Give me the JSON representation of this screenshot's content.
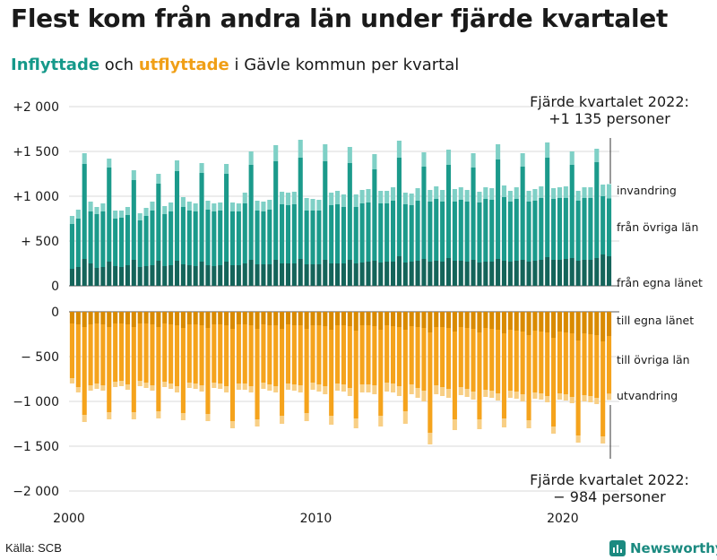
{
  "header": {
    "title": "Flest kom från andra län under fjärde kvartalet",
    "subtitle_in": "Inflyttade",
    "subtitle_mid": " och ",
    "subtitle_out": "utflyttade",
    "subtitle_end": " i Gävle kommun per kvartal"
  },
  "footer": {
    "source": "Källa: SCB",
    "brand": "Newsworthy"
  },
  "colors": {
    "in_own_county": "#14645a",
    "in_other_counties": "#1b9a8b",
    "in_immigration": "#7fd0c6",
    "out_own_county": "#d98a00",
    "out_other_counties": "#f5a31c",
    "out_emigration": "#f8cf85"
  },
  "chart_data": {
    "type": "bar",
    "stacked": true,
    "title": "Inflyttade och utflyttade i Gävle kommun per kvartal",
    "x_start": "2000 Q1",
    "x_end": "2022 Q4",
    "x_tick_labels": [
      "2000",
      "2010",
      "2020"
    ],
    "y_tick_labels": [
      "+2 000",
      "+1 500",
      "+1 000",
      "+ 500",
      "0",
      "0",
      "− 500",
      "−1 000",
      "−1 500",
      "−2 000"
    ],
    "ylim_in": [
      0,
      2000
    ],
    "ylim_out": [
      -2000,
      0
    ],
    "series_labels": {
      "in_own_county": "från egna länet",
      "in_other_counties": "från övriga län",
      "in_immigration": "invandring",
      "out_own_county": "till egna länet",
      "out_other_counties": "till övriga län",
      "out_emigration": "utvandring"
    },
    "annotation_in_line1": "Fjärde kvartalet 2022:",
    "annotation_in_line2": "+1 135 personer",
    "annotation_out_line1": "Fjärde kvartalet 2022:",
    "annotation_out_line2": "−  984 personer",
    "in_totals": [
      780,
      850,
      1480,
      940,
      880,
      920,
      1420,
      840,
      840,
      880,
      1290,
      810,
      870,
      940,
      1250,
      890,
      930,
      1400,
      990,
      940,
      920,
      1370,
      950,
      920,
      930,
      1360,
      930,
      920,
      1040,
      1500,
      950,
      940,
      960,
      1570,
      1050,
      1040,
      1050,
      1630,
      980,
      970,
      960,
      1580,
      1040,
      1060,
      1020,
      1550,
      1020,
      1070,
      1080,
      1470,
      1060,
      1060,
      1100,
      1620,
      1040,
      1030,
      1090,
      1490,
      1070,
      1110,
      1070,
      1520,
      1080,
      1100,
      1070,
      1480,
      1050,
      1100,
      1090,
      1580,
      1120,
      1060,
      1100,
      1480,
      1060,
      1080,
      1110,
      1600,
      1090,
      1100,
      1110,
      1500,
      1060,
      1100,
      1100,
      1530,
      1130,
      1135
    ],
    "in_own": [
      190,
      210,
      300,
      250,
      200,
      210,
      270,
      220,
      210,
      230,
      290,
      210,
      220,
      230,
      280,
      220,
      230,
      280,
      240,
      230,
      220,
      270,
      230,
      220,
      230,
      270,
      230,
      230,
      250,
      290,
      240,
      240,
      240,
      290,
      250,
      250,
      250,
      300,
      240,
      240,
      240,
      290,
      250,
      250,
      250,
      290,
      250,
      260,
      270,
      280,
      260,
      270,
      270,
      330,
      260,
      270,
      280,
      300,
      270,
      280,
      270,
      310,
      280,
      280,
      270,
      290,
      260,
      270,
      270,
      300,
      280,
      270,
      280,
      290,
      270,
      280,
      290,
      320,
      290,
      290,
      300,
      310,
      280,
      290,
      290,
      310,
      350,
      330
    ],
    "in_immigration": [
      90,
      100,
      120,
      110,
      80,
      90,
      100,
      90,
      80,
      90,
      110,
      80,
      90,
      100,
      110,
      90,
      100,
      120,
      110,
      100,
      90,
      110,
      100,
      90,
      90,
      110,
      100,
      90,
      120,
      150,
      110,
      110,
      110,
      180,
      140,
      140,
      140,
      200,
      140,
      130,
      120,
      190,
      140,
      150,
      140,
      180,
      140,
      150,
      150,
      170,
      140,
      140,
      150,
      190,
      130,
      130,
      140,
      160,
      130,
      140,
      130,
      170,
      140,
      140,
      130,
      160,
      120,
      130,
      130,
      170,
      130,
      120,
      130,
      150,
      120,
      130,
      130,
      170,
      120,
      120,
      130,
      150,
      110,
      120,
      120,
      150,
      130,
      160
    ],
    "out_totals": [
      -800,
      -900,
      -1230,
      -880,
      -860,
      -880,
      -1200,
      -840,
      -830,
      -870,
      -1200,
      -830,
      -850,
      -880,
      -1190,
      -840,
      -860,
      -900,
      -1210,
      -850,
      -860,
      -890,
      -1220,
      -850,
      -860,
      -900,
      -1300,
      -870,
      -870,
      -900,
      -1280,
      -860,
      -880,
      -900,
      -1250,
      -870,
      -880,
      -900,
      -1220,
      -870,
      -890,
      -920,
      -1260,
      -880,
      -890,
      -940,
      -1300,
      -900,
      -900,
      -920,
      -1280,
      -890,
      -900,
      -940,
      -1250,
      -920,
      -960,
      -1000,
      -1480,
      -920,
      -940,
      -960,
      -1320,
      -930,
      -950,
      -980,
      -1310,
      -950,
      -960,
      -990,
      -1290,
      -960,
      -970,
      -1000,
      -1300,
      -970,
      -980,
      -1010,
      -1360,
      -980,
      -990,
      -1020,
      -1460,
      -1000,
      -1010,
      -1030,
      -1470,
      -984
    ],
    "out_own": [
      -130,
      -140,
      -170,
      -140,
      -130,
      -140,
      -170,
      -130,
      -130,
      -140,
      -170,
      -130,
      -130,
      -140,
      -170,
      -130,
      -140,
      -150,
      -180,
      -140,
      -140,
      -150,
      -180,
      -140,
      -140,
      -150,
      -190,
      -140,
      -140,
      -150,
      -190,
      -140,
      -150,
      -150,
      -190,
      -140,
      -150,
      -150,
      -190,
      -150,
      -150,
      -160,
      -200,
      -150,
      -150,
      -160,
      -210,
      -150,
      -150,
      -160,
      -200,
      -150,
      -160,
      -170,
      -200,
      -160,
      -170,
      -180,
      -230,
      -170,
      -170,
      -180,
      -220,
      -170,
      -180,
      -190,
      -230,
      -180,
      -190,
      -200,
      -240,
      -200,
      -210,
      -220,
      -260,
      -210,
      -220,
      -230,
      -290,
      -220,
      -230,
      -240,
      -320,
      -240,
      -250,
      -260,
      -330,
      -270
    ],
    "out_emigration": [
      -60,
      -60,
      -80,
      -60,
      -60,
      -60,
      -80,
      -60,
      -60,
      -60,
      -80,
      -60,
      -60,
      -60,
      -80,
      -60,
      -60,
      -70,
      -80,
      -60,
      -60,
      -70,
      -80,
      -60,
      -60,
      -70,
      -80,
      -70,
      -70,
      -70,
      -80,
      -70,
      -70,
      -70,
      -90,
      -70,
      -70,
      -80,
      -90,
      -80,
      -80,
      -90,
      -100,
      -80,
      -80,
      -90,
      -110,
      -90,
      -90,
      -100,
      -120,
      -100,
      -100,
      -110,
      -140,
      -110,
      -110,
      -120,
      -130,
      -100,
      -100,
      -100,
      -120,
      -90,
      -90,
      -90,
      -110,
      -80,
      -80,
      -80,
      -100,
      -80,
      -80,
      -80,
      -90,
      -70,
      -70,
      -70,
      -80,
      -70,
      -70,
      -70,
      -80,
      -70,
      -70,
      -70,
      -80,
      -70
    ]
  }
}
